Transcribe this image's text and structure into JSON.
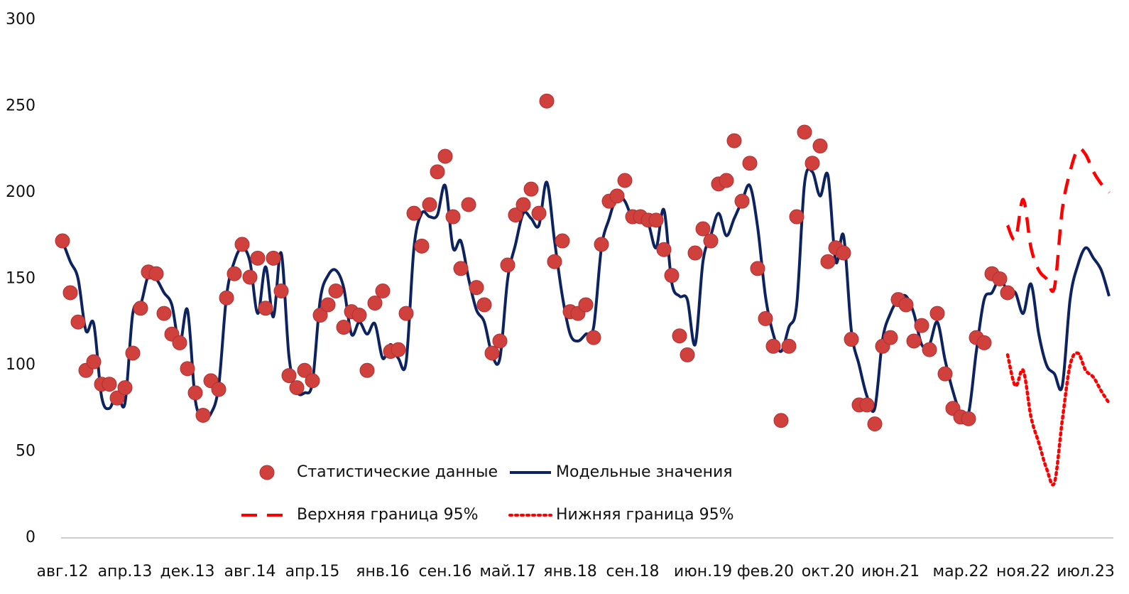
{
  "chart_data": {
    "type": "line",
    "categories": [
      "авг.12",
      null,
      null,
      null,
      null,
      null,
      null,
      null,
      "апр.13",
      null,
      null,
      null,
      null,
      null,
      null,
      null,
      "дек.13",
      null,
      null,
      null,
      null,
      null,
      null,
      null,
      "авг.14",
      null,
      null,
      null,
      null,
      null,
      null,
      null,
      "апр.15",
      null,
      null,
      null,
      null,
      null,
      null,
      null,
      null,
      "янв.16",
      null,
      null,
      null,
      null,
      null,
      null,
      null,
      "сен.16",
      null,
      null,
      null,
      null,
      null,
      null,
      null,
      "май.17",
      null,
      null,
      null,
      null,
      null,
      null,
      null,
      "янв.18",
      null,
      null,
      null,
      null,
      null,
      null,
      null,
      "сен.18",
      null,
      null,
      null,
      null,
      null,
      null,
      null,
      null,
      "июн.19",
      null,
      null,
      null,
      null,
      null,
      null,
      null,
      "фев.20",
      null,
      null,
      null,
      null,
      null,
      null,
      null,
      "окт.20",
      null,
      null,
      null,
      null,
      null,
      null,
      null,
      "июн.21",
      null,
      null,
      null,
      null,
      null,
      null,
      null,
      null,
      "мар.22",
      null,
      null,
      null,
      null,
      null,
      null,
      null,
      "ноя.22",
      null,
      null,
      null,
      null,
      null,
      null,
      null,
      "июл.23",
      null,
      null,
      null
    ],
    "series": [
      {
        "name": "Статистические данные",
        "style": "dots",
        "color": "#d0413e",
        "values": [
          172,
          142,
          125,
          97,
          102,
          89,
          89,
          81,
          87,
          107,
          133,
          154,
          153,
          130,
          118,
          113,
          98,
          84,
          71,
          91,
          86,
          139,
          153,
          170,
          151,
          162,
          133,
          162,
          143,
          94,
          87,
          97,
          91,
          129,
          135,
          143,
          122,
          131,
          129,
          97,
          136,
          143,
          108,
          109,
          130,
          188,
          169,
          193,
          212,
          221,
          186,
          156,
          193,
          145,
          135,
          107,
          114,
          158,
          187,
          193,
          202,
          188,
          253,
          160,
          172,
          131,
          130,
          135,
          116,
          170,
          195,
          198,
          207,
          186,
          186,
          184,
          184,
          167,
          152,
          117,
          106,
          165,
          179,
          172,
          205,
          207,
          230,
          195,
          217,
          156,
          127,
          111,
          68,
          111,
          186,
          235,
          217,
          227,
          160,
          168,
          165,
          115,
          77,
          77,
          66,
          111,
          116,
          138,
          135,
          114,
          123,
          109,
          130,
          95,
          75,
          70,
          69,
          116,
          113,
          153,
          150,
          142,
          null,
          null,
          null,
          null,
          null,
          null,
          null,
          null,
          null,
          null,
          null,
          null,
          null
        ]
      },
      {
        "name": "Модельные значения",
        "style": "solid",
        "color": "#0d2360",
        "values": [
          172,
          160,
          150,
          120,
          124,
          82,
          75,
          84,
          78,
          130,
          135,
          152,
          150,
          142,
          135,
          112,
          132,
          80,
          70,
          72,
          88,
          140,
          160,
          168,
          160,
          130,
          157,
          128,
          165,
          105,
          85,
          84,
          90,
          138,
          152,
          155,
          145,
          118,
          125,
          118,
          124,
          104,
          112,
          104,
          102,
          168,
          188,
          186,
          187,
          204,
          168,
          172,
          150,
          132,
          125,
          106,
          104,
          150,
          170,
          188,
          185,
          181,
          206,
          172,
          140,
          118,
          114,
          118,
          122,
          168,
          185,
          198,
          195,
          185,
          185,
          182,
          168,
          190,
          148,
          140,
          138,
          112,
          160,
          175,
          188,
          175,
          185,
          195,
          204,
          180,
          140,
          118,
          108,
          122,
          135,
          205,
          212,
          198,
          210,
          160,
          175,
          120,
          100,
          82,
          75,
          115,
          130,
          138,
          140,
          130,
          112,
          112,
          125,
          103,
          85,
          72,
          72,
          108,
          138,
          142,
          150,
          143,
          142,
          130,
          147,
          118,
          100,
          95,
          88,
          138,
          158,
          168,
          162,
          155,
          140
        ]
      },
      {
        "name": "Верхняя граница 95%",
        "style": "dashed",
        "color": "#ff0000",
        "values": [
          null,
          null,
          null,
          null,
          null,
          null,
          null,
          null,
          null,
          null,
          null,
          null,
          null,
          null,
          null,
          null,
          null,
          null,
          null,
          null,
          null,
          null,
          null,
          null,
          null,
          null,
          null,
          null,
          null,
          null,
          null,
          null,
          null,
          null,
          null,
          null,
          null,
          null,
          null,
          null,
          null,
          null,
          null,
          null,
          null,
          null,
          null,
          null,
          null,
          null,
          null,
          null,
          null,
          null,
          null,
          null,
          null,
          null,
          null,
          null,
          null,
          null,
          null,
          null,
          null,
          null,
          null,
          null,
          null,
          null,
          null,
          null,
          null,
          null,
          null,
          null,
          null,
          null,
          null,
          null,
          null,
          null,
          null,
          null,
          null,
          null,
          null,
          null,
          null,
          null,
          null,
          null,
          null,
          null,
          null,
          null,
          null,
          null,
          null,
          null,
          null,
          null,
          null,
          null,
          null,
          null,
          null,
          null,
          null,
          null,
          null,
          null,
          null,
          null,
          null,
          null,
          null,
          null,
          null,
          null,
          null,
          181,
          173,
          196,
          168,
          155,
          150,
          145,
          190,
          212,
          225,
          222,
          212,
          205,
          200
        ]
      },
      {
        "name": "Нижняя граница 95%",
        "style": "dotted",
        "color": "#ff0000",
        "values": [
          null,
          null,
          null,
          null,
          null,
          null,
          null,
          null,
          null,
          null,
          null,
          null,
          null,
          null,
          null,
          null,
          null,
          null,
          null,
          null,
          null,
          null,
          null,
          null,
          null,
          null,
          null,
          null,
          null,
          null,
          null,
          null,
          null,
          null,
          null,
          null,
          null,
          null,
          null,
          null,
          null,
          null,
          null,
          null,
          null,
          null,
          null,
          null,
          null,
          null,
          null,
          null,
          null,
          null,
          null,
          null,
          null,
          null,
          null,
          null,
          null,
          null,
          null,
          null,
          null,
          null,
          null,
          null,
          null,
          null,
          null,
          null,
          null,
          null,
          null,
          null,
          null,
          null,
          null,
          null,
          null,
          null,
          null,
          null,
          null,
          null,
          null,
          null,
          null,
          null,
          null,
          null,
          null,
          null,
          null,
          null,
          null,
          null,
          null,
          null,
          null,
          null,
          null,
          null,
          null,
          null,
          null,
          null,
          null,
          null,
          null,
          null,
          null,
          null,
          null,
          null,
          null,
          null,
          null,
          null,
          null,
          106,
          88,
          97,
          70,
          55,
          40,
          32,
          68,
          100,
          107,
          97,
          93,
          85,
          78
        ]
      }
    ],
    "ylim": [
      0,
      300
    ],
    "yticks": [
      0,
      50,
      100,
      150,
      200,
      250,
      300
    ],
    "grid": false
  }
}
